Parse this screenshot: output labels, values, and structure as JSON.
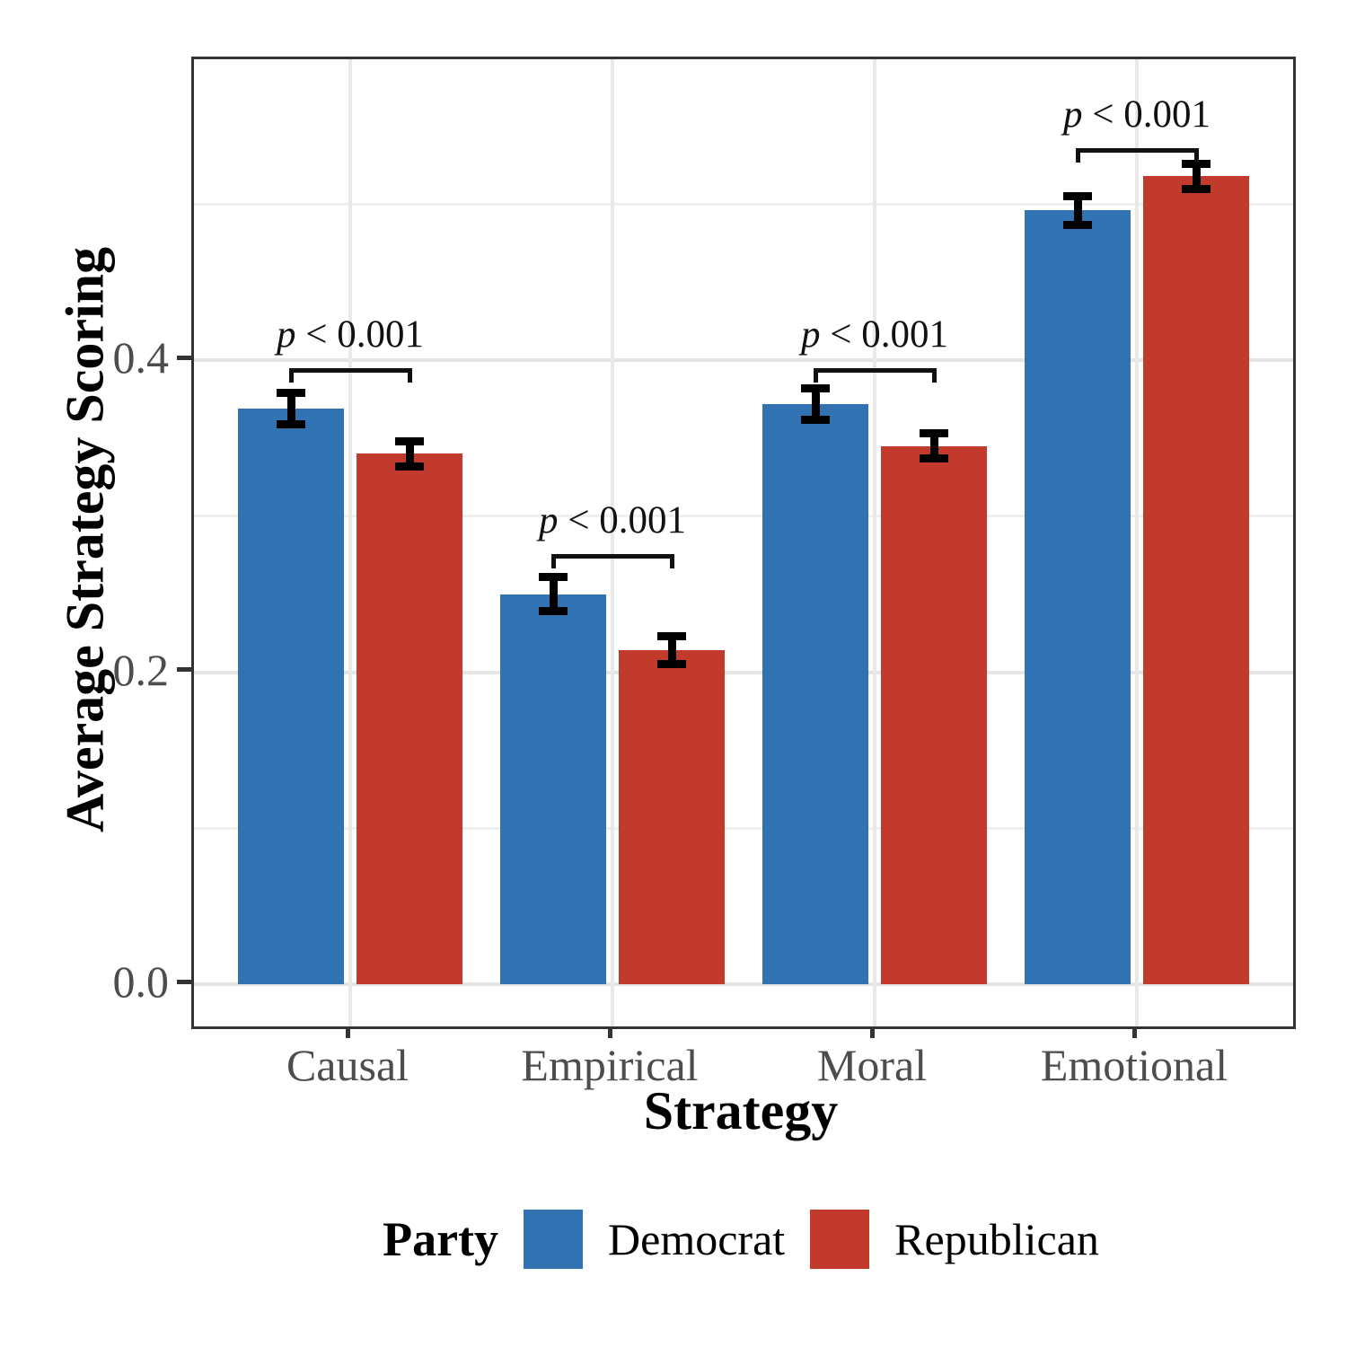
{
  "figure": {
    "x_axis_title": "Strategy",
    "y_axis_title": "Average Strategy Scoring"
  },
  "legend": {
    "title": "Party",
    "entries": [
      {
        "label": "Democrat",
        "color": "#3173B2"
      },
      {
        "label": "Republican",
        "color": "#C23A2C"
      }
    ]
  },
  "chart_data": {
    "type": "bar",
    "title": "",
    "xlabel": "Strategy",
    "ylabel": "Average Strategy Scoring",
    "categories": [
      "Causal",
      "Empirical",
      "Moral",
      "Emotional"
    ],
    "series": [
      {
        "name": "Democrat",
        "color": "#3173B2",
        "values": [
          0.369,
          0.25,
          0.372,
          0.496
        ],
        "error_margins": [
          0.01,
          0.011,
          0.01,
          0.009
        ]
      },
      {
        "name": "Republican",
        "color": "#C23A2C",
        "values": [
          0.34,
          0.214,
          0.345,
          0.518
        ],
        "error_margins": [
          0.008,
          0.009,
          0.008,
          0.008
        ]
      }
    ],
    "significance_labels": [
      {
        "category": "Causal",
        "text": "p < 0.001",
        "bracket_y": 0.395
      },
      {
        "category": "Empirical",
        "text": "p < 0.001",
        "bracket_y": 0.276
      },
      {
        "category": "Moral",
        "text": "p < 0.001",
        "bracket_y": 0.395
      },
      {
        "category": "Emotional",
        "text": "p < 0.001",
        "bracket_y": 0.536
      }
    ],
    "ylim": [
      -0.027,
      0.593
    ],
    "yticks": [
      {
        "value": 0.0,
        "label": "0.0"
      },
      {
        "value": 0.2,
        "label": "0.2"
      },
      {
        "value": 0.4,
        "label": "0.4"
      }
    ],
    "yticks_minor": [
      0.1,
      0.3,
      0.5
    ],
    "grid": "horizontal major+minor; vertical major at category centers",
    "legend_position": "bottom",
    "error_bars": true
  }
}
